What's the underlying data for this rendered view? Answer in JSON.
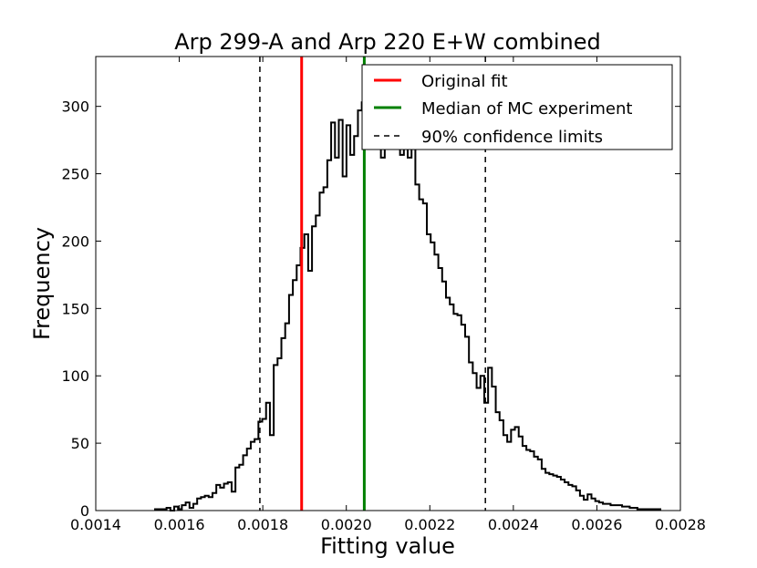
{
  "chart_data": {
    "type": "histogram",
    "title": "Arp 299-A and Arp 220 E+W combined",
    "xlabel": "Fitting value",
    "ylabel": "Frequency",
    "xlim": [
      0.0014,
      0.0028
    ],
    "ylim": [
      0,
      337
    ],
    "grid": false,
    "xticks": [
      0.0014,
      0.0016,
      0.0018,
      0.002,
      0.0022,
      0.0024,
      0.0026,
      0.0028
    ],
    "xtick_labels": [
      "0.0014",
      "0.0016",
      "0.0018",
      "0.0020",
      "0.0022",
      "0.0024",
      "0.0026",
      "0.0028"
    ],
    "yticks": [
      0,
      50,
      100,
      150,
      200,
      250,
      300
    ],
    "ytick_labels": [
      "0",
      "50",
      "100",
      "150",
      "200",
      "250",
      "300"
    ],
    "histogram": {
      "name": "MC fitting value distribution",
      "color": "#000000",
      "bin_edges": [
        0.001542,
        0.002752
      ],
      "counts": [
        1,
        1,
        1,
        2,
        0,
        3,
        1,
        4,
        6,
        2,
        5,
        9,
        10,
        11,
        10,
        13,
        19,
        17,
        20,
        21,
        14,
        32,
        34,
        41,
        46,
        51,
        53,
        66,
        68,
        80,
        56,
        108,
        113,
        128,
        139,
        160,
        171,
        182,
        195,
        205,
        178,
        211,
        219,
        236,
        240,
        260,
        288,
        262,
        290,
        248,
        286,
        264,
        278,
        297,
        303,
        278,
        290,
        272,
        276,
        262,
        272,
        292,
        281,
        282,
        264,
        270,
        262,
        275,
        242,
        231,
        228,
        205,
        199,
        190,
        180,
        170,
        158,
        153,
        146,
        145,
        138,
        129,
        110,
        102,
        91,
        100,
        80,
        106,
        92,
        73,
        67,
        56,
        51,
        60,
        62,
        55,
        48,
        45,
        44,
        40,
        38,
        31,
        28,
        27,
        26,
        25,
        23,
        21,
        19,
        18,
        15,
        11,
        8,
        12,
        9,
        7,
        6,
        5,
        5,
        4,
        4,
        4,
        3,
        3,
        2,
        2,
        1,
        1,
        1,
        1,
        1,
        1
      ]
    },
    "vertical_lines": [
      {
        "label": "Original fit",
        "x": 0.001893,
        "color": "#ff0000",
        "style": "solid"
      },
      {
        "label": "Median of MC experiment",
        "x": 0.002043,
        "color": "#008000",
        "style": "solid"
      },
      {
        "label": "90% confidence limits",
        "x": 0.001793,
        "color": "#000000",
        "style": "dashed"
      },
      {
        "label": "90% confidence limits",
        "x": 0.002333,
        "color": "#000000",
        "style": "dashed"
      }
    ],
    "legend": {
      "position": "top-right",
      "entries": [
        {
          "label": "Original fit",
          "color": "#ff0000",
          "style": "solid"
        },
        {
          "label": "Median of MC experiment",
          "color": "#008000",
          "style": "solid"
        },
        {
          "label": "90% confidence limits",
          "color": "#000000",
          "style": "dashed"
        }
      ]
    }
  }
}
